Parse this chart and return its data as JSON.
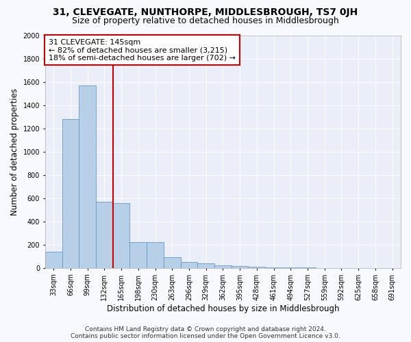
{
  "title": "31, CLEVEGATE, NUNTHORPE, MIDDLESBROUGH, TS7 0JH",
  "subtitle": "Size of property relative to detached houses in Middlesbrough",
  "xlabel": "Distribution of detached houses by size in Middlesbrough",
  "ylabel": "Number of detached properties",
  "footer_line1": "Contains HM Land Registry data © Crown copyright and database right 2024.",
  "footer_line2": "Contains public sector information licensed under the Open Government Licence v3.0.",
  "annotation_line1": "31 CLEVEGATE: 145sqm",
  "annotation_line2": "← 82% of detached houses are smaller (3,215)",
  "annotation_line3": "18% of semi-detached houses are larger (702) →",
  "bar_labels": [
    "33sqm",
    "66sqm",
    "99sqm",
    "132sqm",
    "165sqm",
    "198sqm",
    "230sqm",
    "263sqm",
    "296sqm",
    "329sqm",
    "362sqm",
    "395sqm",
    "428sqm",
    "461sqm",
    "494sqm",
    "527sqm",
    "559sqm",
    "592sqm",
    "625sqm",
    "658sqm",
    "691sqm"
  ],
  "bar_values": [
    140,
    1280,
    1570,
    570,
    560,
    220,
    220,
    95,
    50,
    40,
    25,
    15,
    10,
    5,
    3,
    2,
    1,
    1,
    0,
    0,
    0
  ],
  "bar_color": "#b8cfe8",
  "bar_edge_color": "#6699cc",
  "vline_color": "#cc0000",
  "vline_x": 3.5,
  "ylim": [
    0,
    2000
  ],
  "yticks": [
    0,
    200,
    400,
    600,
    800,
    1000,
    1200,
    1400,
    1600,
    1800,
    2000
  ],
  "bg_color": "#f7f9ff",
  "plot_bg_color": "#eaeef8",
  "grid_color": "#ffffff",
  "annotation_box_color": "#ffffff",
  "annotation_box_edge": "#cc0000",
  "title_fontsize": 10,
  "subtitle_fontsize": 9,
  "axis_label_fontsize": 8.5,
  "tick_fontsize": 7,
  "annotation_fontsize": 8,
  "footer_fontsize": 6.5
}
